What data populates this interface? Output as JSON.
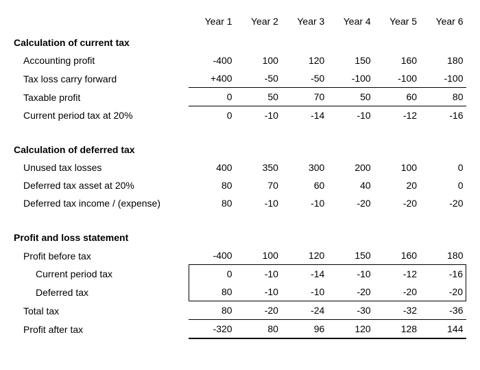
{
  "headers": [
    "Year 1",
    "Year 2",
    "Year 3",
    "Year 4",
    "Year 5",
    "Year 6"
  ],
  "sections": {
    "current": {
      "title": "Calculation of current tax",
      "rows": {
        "accounting_profit": {
          "label": "Accounting profit",
          "v": [
            "-400",
            "100",
            "120",
            "150",
            "160",
            "180"
          ]
        },
        "tax_loss_cf": {
          "label": "Tax loss carry forward",
          "v": [
            "+400",
            "-50",
            "-50",
            "-100",
            "-100",
            "-100"
          ]
        },
        "taxable_profit": {
          "label": "Taxable profit",
          "v": [
            "0",
            "50",
            "70",
            "50",
            "60",
            "80"
          ]
        },
        "current_tax_20": {
          "label": "Current period tax at 20%",
          "v": [
            "0",
            "-10",
            "-14",
            "-10",
            "-12",
            "-16"
          ]
        }
      }
    },
    "deferred": {
      "title": "Calculation of deferred tax",
      "rows": {
        "unused_losses": {
          "label": "Unused tax losses",
          "v": [
            "400",
            "350",
            "300",
            "200",
            "100",
            "0"
          ]
        },
        "dta_20": {
          "label": "Deferred tax asset at 20%",
          "v": [
            "80",
            "70",
            "60",
            "40",
            "20",
            "0"
          ]
        },
        "dt_income_exp": {
          "label": "Deferred tax income / (expense)",
          "v": [
            "80",
            "-10",
            "-10",
            "-20",
            "-20",
            "-20"
          ]
        }
      }
    },
    "pl": {
      "title": "Profit and loss statement",
      "rows": {
        "pbt": {
          "label": "Profit before tax",
          "v": [
            "-400",
            "100",
            "120",
            "150",
            "160",
            "180"
          ]
        },
        "current_tax": {
          "label": "Current period tax",
          "v": [
            "0",
            "-10",
            "-14",
            "-10",
            "-12",
            "-16"
          ]
        },
        "deferred_tax": {
          "label": "Deferred tax",
          "v": [
            "80",
            "-10",
            "-10",
            "-20",
            "-20",
            "-20"
          ]
        },
        "total_tax": {
          "label": "Total tax",
          "v": [
            "80",
            "-20",
            "-24",
            "-30",
            "-32",
            "-36"
          ]
        },
        "pat": {
          "label": "Profit after tax",
          "v": [
            "-320",
            "80",
            "96",
            "120",
            "128",
            "144"
          ]
        }
      }
    }
  },
  "style": {
    "font_family": "Arial",
    "font_size_pt": 11,
    "text_color": "#000000",
    "background_color": "#ffffff",
    "border_color": "#000000"
  }
}
